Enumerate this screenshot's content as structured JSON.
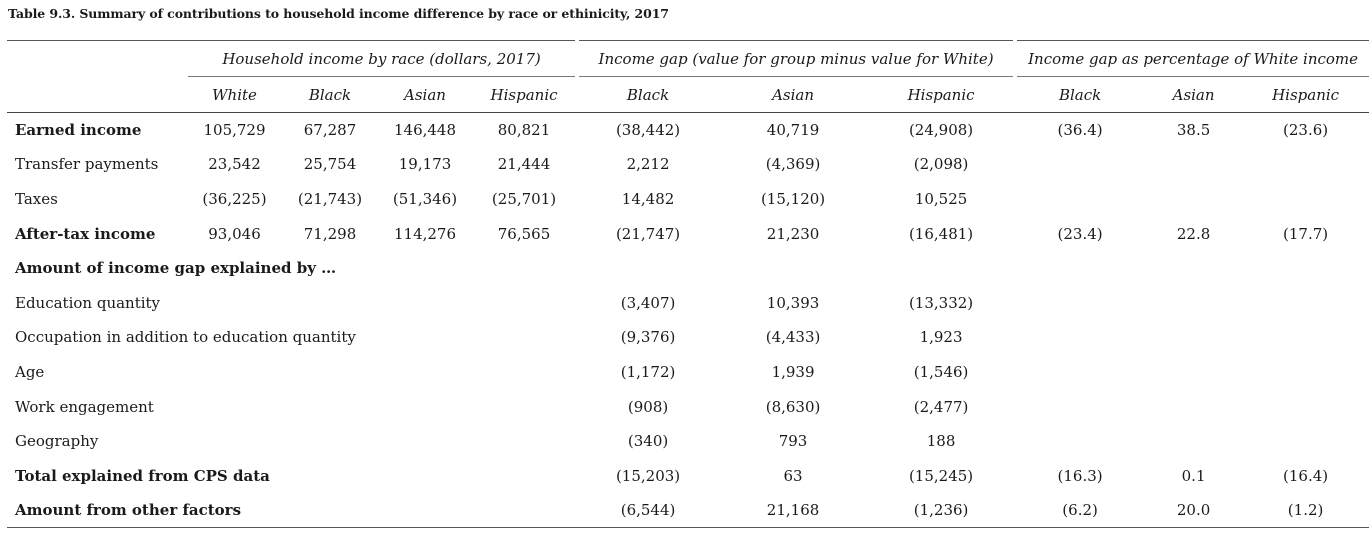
{
  "caption": "Table 9.3. Summary of contributions to household income difference by race or ethinicity, 2017",
  "groups": {
    "household_income": "Household income by race (dollars, 2017)",
    "income_gap": "Income gap (value for group minus value for White)",
    "income_gap_pct": "Income gap as percentage of White income"
  },
  "subheaders": [
    "White",
    "Black",
    "Asian",
    "Hispanic",
    "Black",
    "Asian",
    "Hispanic",
    "Black",
    "Asian",
    "Hispanic"
  ],
  "rows": [
    {
      "label": "Earned income",
      "bold": true,
      "values": [
        "105,729",
        "67,287",
        "146,448",
        "80,821",
        "(38,442)",
        "40,719",
        "(24,908)",
        "(36.4)",
        "38.5",
        "(23.6)"
      ]
    },
    {
      "label": "Transfer payments",
      "bold": false,
      "values": [
        "23,542",
        "25,754",
        "19,173",
        "21,444",
        "2,212",
        "(4,369)",
        "(2,098)",
        "",
        "",
        ""
      ]
    },
    {
      "label": "Taxes",
      "bold": false,
      "values": [
        "(36,225)",
        "(21,743)",
        "(51,346)",
        "(25,701)",
        "14,482",
        "(15,120)",
        "10,525",
        "",
        "",
        ""
      ]
    },
    {
      "label": "After-tax income",
      "bold": true,
      "values": [
        "93,046",
        "71,298",
        "114,276",
        "76,565",
        "(21,747)",
        "21,230",
        "(16,481)",
        "(23.4)",
        "22.8",
        "(17.7)"
      ]
    },
    {
      "label": "Amount of income gap explained by …",
      "bold": true,
      "values": [
        "",
        "",
        "",
        "",
        "",
        "",
        "",
        "",
        "",
        ""
      ]
    },
    {
      "label": "Education quantity",
      "bold": false,
      "values": [
        "",
        "",
        "",
        "",
        "(3,407)",
        "10,393",
        "(13,332)",
        "",
        "",
        ""
      ]
    },
    {
      "label": "Occupation in addition to education quantity",
      "bold": false,
      "values": [
        "",
        "",
        "",
        "",
        "(9,376)",
        "(4,433)",
        "1,923",
        "",
        "",
        ""
      ]
    },
    {
      "label": "Age",
      "bold": false,
      "values": [
        "",
        "",
        "",
        "",
        "(1,172)",
        "1,939",
        "(1,546)",
        "",
        "",
        ""
      ]
    },
    {
      "label": "Work engagement",
      "bold": false,
      "values": [
        "",
        "",
        "",
        "",
        "(908)",
        "(8,630)",
        "(2,477)",
        "",
        "",
        ""
      ]
    },
    {
      "label": "Geography",
      "bold": false,
      "values": [
        "",
        "",
        "",
        "",
        "(340)",
        "793",
        "188",
        "",
        "",
        ""
      ]
    },
    {
      "label": "Total explained from CPS data",
      "bold": true,
      "values": [
        "",
        "",
        "",
        "",
        "(15,203)",
        "63",
        "(15,245)",
        "(16.3)",
        "0.1",
        "(16.4)"
      ]
    },
    {
      "label": "Amount from other factors",
      "bold": true,
      "values": [
        "",
        "",
        "",
        "",
        "(6,544)",
        "21,168",
        "(1,236)",
        "(6.2)",
        "20.0",
        "(1.2)"
      ]
    }
  ]
}
